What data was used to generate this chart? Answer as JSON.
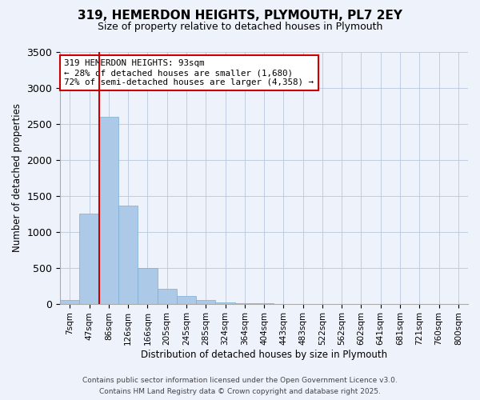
{
  "title": "319, HEMERDON HEIGHTS, PLYMOUTH, PL7 2EY",
  "subtitle": "Size of property relative to detached houses in Plymouth",
  "xlabel": "Distribution of detached houses by size in Plymouth",
  "ylabel": "Number of detached properties",
  "bin_labels": [
    "7sqm",
    "47sqm",
    "86sqm",
    "126sqm",
    "166sqm",
    "205sqm",
    "245sqm",
    "285sqm",
    "324sqm",
    "364sqm",
    "404sqm",
    "443sqm",
    "483sqm",
    "522sqm",
    "562sqm",
    "602sqm",
    "641sqm",
    "681sqm",
    "721sqm",
    "760sqm",
    "800sqm"
  ],
  "bar_values": [
    50,
    1250,
    2600,
    1360,
    500,
    210,
    110,
    50,
    15,
    5,
    2,
    1,
    0,
    0,
    0,
    0,
    0,
    0,
    0,
    0,
    0
  ],
  "bar_color": "#adc9e8",
  "bar_edge_color": "#7aadd4",
  "vline_x": 1.5,
  "vline_color": "#cc0000",
  "annotation_title": "319 HEMERDON HEIGHTS: 93sqm",
  "annotation_line2": "← 28% of detached houses are smaller (1,680)",
  "annotation_line3": "72% of semi-detached houses are larger (4,358) →",
  "annotation_box_color": "#ffffff",
  "annotation_box_edge": "#cc0000",
  "ylim": [
    0,
    3500
  ],
  "yticks": [
    0,
    500,
    1000,
    1500,
    2000,
    2500,
    3000,
    3500
  ],
  "background_color": "#eef2fb",
  "grid_color": "#c0cce0",
  "footer1": "Contains HM Land Registry data © Crown copyright and database right 2025.",
  "footer2": "Contains public sector information licensed under the Open Government Licence v3.0."
}
